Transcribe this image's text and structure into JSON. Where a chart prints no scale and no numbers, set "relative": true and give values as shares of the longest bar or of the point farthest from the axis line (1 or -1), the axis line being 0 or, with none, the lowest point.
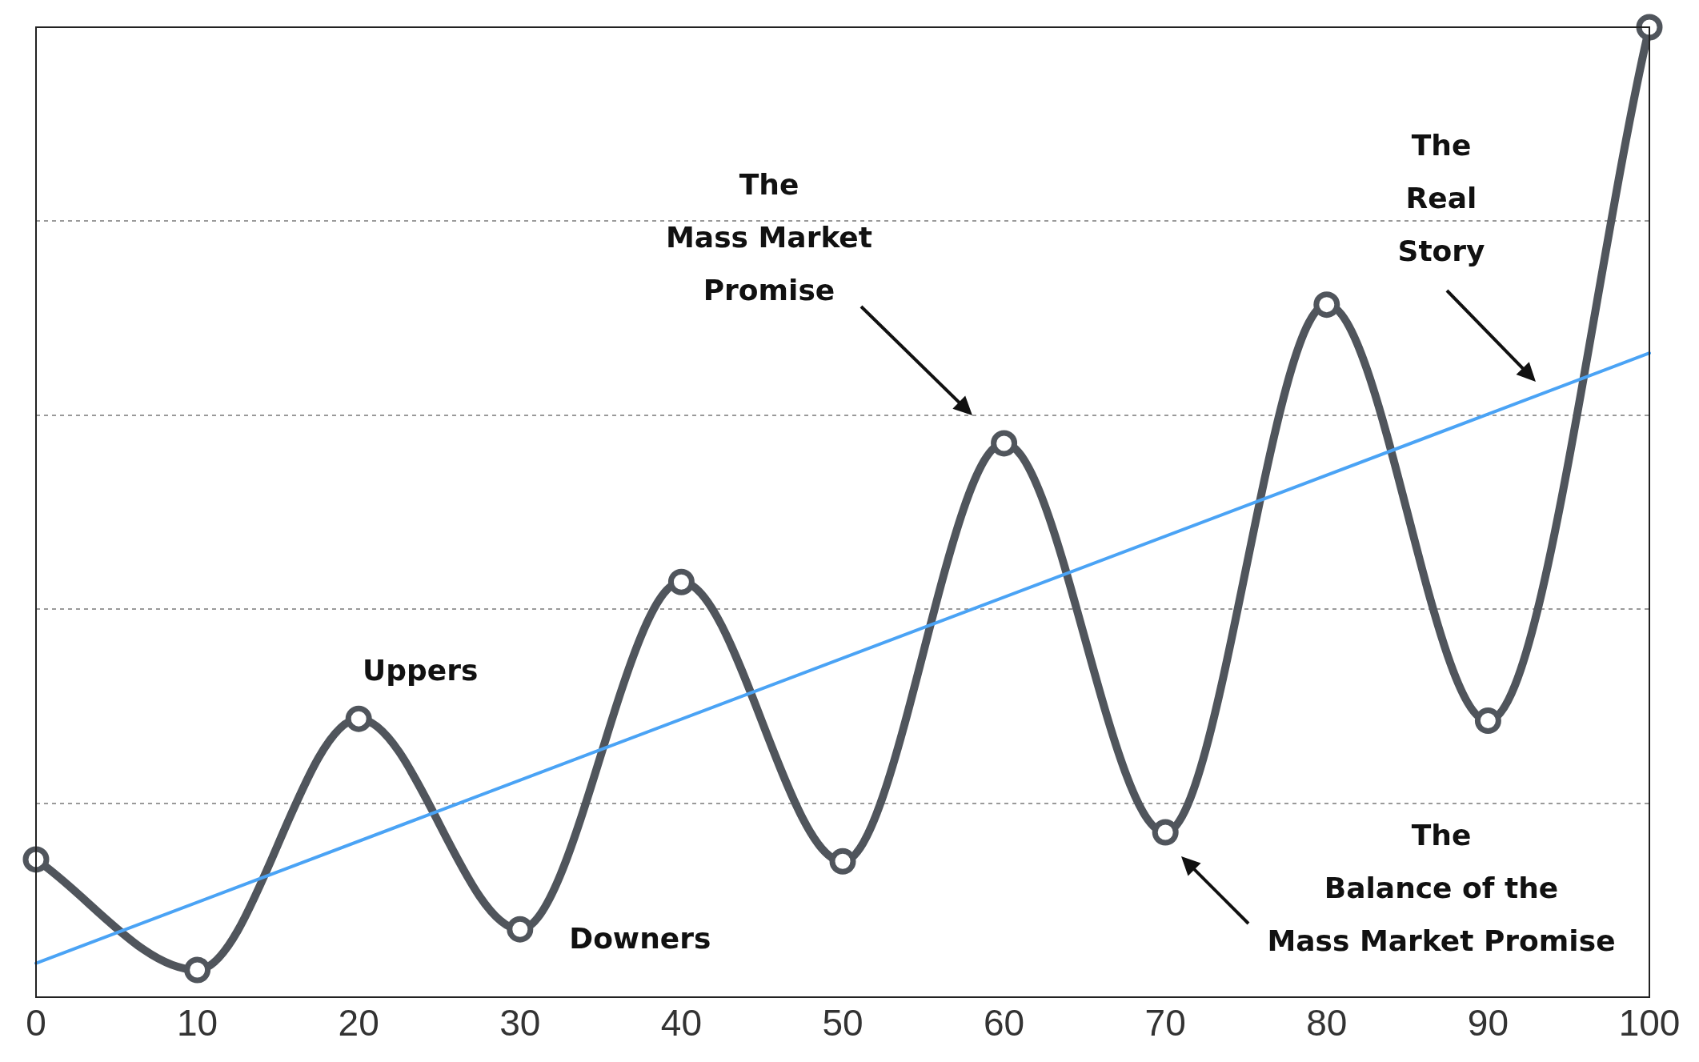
{
  "chart_data": {
    "type": "line",
    "relative": true,
    "x": [
      0,
      10,
      20,
      30,
      40,
      50,
      60,
      70,
      80,
      90,
      100
    ],
    "xlim": [
      0,
      100
    ],
    "xticks": [
      0,
      10,
      20,
      30,
      40,
      50,
      60,
      70,
      80,
      90,
      100
    ],
    "grid": "y",
    "legend": false,
    "marker": "circle",
    "tick_labels": "x",
    "series": [
      {
        "color": "#50555c",
        "values": [
          0.142,
          0.028,
          0.287,
          0.07,
          0.428,
          0.14,
          0.571,
          0.17,
          0.714,
          0.285,
          1
        ]
      },
      {
        "type": "line",
        "x": [
          0,
          100
        ],
        "values": [
          0.035,
          0.664
        ],
        "color": "#4aa3f5",
        "marker": "none"
      }
    ],
    "annotations": [
      {
        "text": "Uppers",
        "x": 20,
        "y": 0.287
      },
      {
        "text": "Downers",
        "x": 30,
        "y": 0.07
      },
      "The\nMass Market\nPromise",
      "The\nReal\nStory",
      "The\nBalance of the\nMass Market Promise"
    ]
  }
}
